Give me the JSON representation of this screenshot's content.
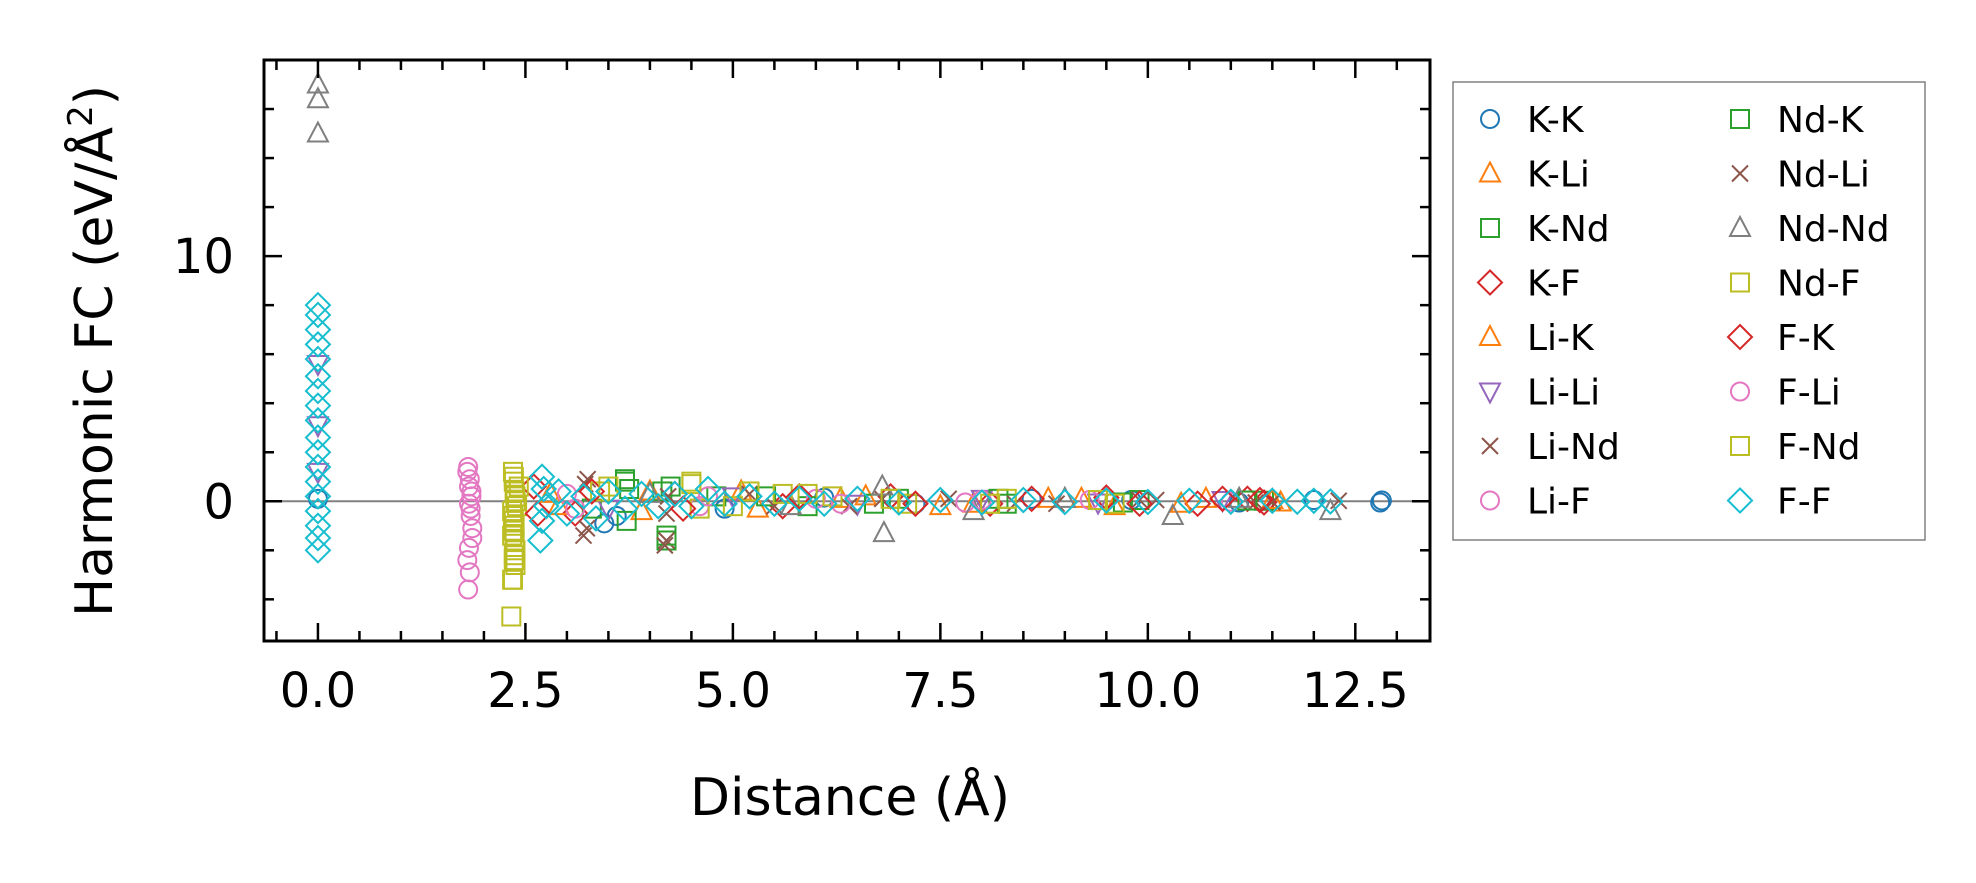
{
  "chart_data": {
    "type": "scatter",
    "title": "",
    "xlabel": "Distance (Å)",
    "ylabel_main": "Harmonic FC (eV/Å",
    "ylabel_sup": "2",
    "ylabel_end": ")",
    "xlim": [
      -0.65,
      13.4
    ],
    "ylim": [
      -5.7,
      18.0
    ],
    "x_ticks": [
      0.0,
      2.5,
      5.0,
      7.5,
      10.0,
      12.5
    ],
    "x_tick_labels": [
      "0.0",
      "2.5",
      "5.0",
      "7.5",
      "10.0",
      "12.5"
    ],
    "y_ticks": [
      0,
      10
    ],
    "y_tick_labels": [
      "0",
      "10"
    ],
    "zero_line": true,
    "legend_position": "right",
    "legend_columns": 2,
    "series": [
      {
        "name": "K-K",
        "marker": "circle",
        "color": "#1f77b4",
        "points": [
          [
            0.0,
            0.1
          ],
          [
            3.45,
            -0.9
          ],
          [
            3.6,
            -0.6
          ],
          [
            4.9,
            -0.3
          ],
          [
            6.1,
            0.15
          ],
          [
            7.2,
            -0.1
          ],
          [
            8.6,
            0.1
          ],
          [
            9.8,
            0.05
          ],
          [
            11.1,
            -0.05
          ],
          [
            12.0,
            0.05
          ],
          [
            12.8,
            -0.05
          ],
          [
            12.82,
            0.03
          ]
        ]
      },
      {
        "name": "K-Li",
        "marker": "triangle-up",
        "color": "#ff7f0e",
        "points": [
          [
            2.8,
            0.3
          ],
          [
            3.9,
            -0.4
          ],
          [
            5.1,
            0.4
          ],
          [
            6.3,
            0.1
          ],
          [
            7.5,
            -0.2
          ],
          [
            8.8,
            0.1
          ],
          [
            9.6,
            -0.2
          ],
          [
            10.7,
            0.1
          ],
          [
            11.6,
            -0.05
          ]
        ]
      },
      {
        "name": "K-Nd",
        "marker": "square",
        "color": "#2ca02c",
        "points": [
          [
            3.3,
            -0.3
          ],
          [
            3.7,
            0.8
          ],
          [
            3.75,
            0.5
          ],
          [
            4.2,
            -1.6
          ],
          [
            4.25,
            0.6
          ],
          [
            4.8,
            0.2
          ],
          [
            5.9,
            -0.2
          ],
          [
            7.0,
            0.1
          ],
          [
            8.3,
            -0.1
          ],
          [
            9.9,
            0.05
          ],
          [
            11.4,
            0.02
          ]
        ]
      },
      {
        "name": "K-F",
        "marker": "diamond",
        "color": "#d62728",
        "points": [
          [
            2.6,
            0.6
          ],
          [
            3.1,
            -0.5
          ],
          [
            4.3,
            0.3
          ],
          [
            5.6,
            -0.2
          ],
          [
            6.9,
            0.2
          ],
          [
            8.1,
            -0.1
          ],
          [
            9.5,
            0.15
          ],
          [
            10.6,
            -0.1
          ],
          [
            11.2,
            0.1
          ],
          [
            11.4,
            -0.05
          ]
        ]
      },
      {
        "name": "Li-K",
        "marker": "triangle-up",
        "color": "#ff7f0e",
        "points": [
          [
            2.9,
            -0.2
          ],
          [
            4.0,
            0.4
          ],
          [
            5.3,
            -0.3
          ],
          [
            6.6,
            0.2
          ],
          [
            7.9,
            -0.1
          ],
          [
            9.2,
            0.1
          ],
          [
            10.4,
            -0.1
          ],
          [
            11.5,
            0.05
          ]
        ]
      },
      {
        "name": "Li-Li",
        "marker": "triangle-down",
        "color": "#9467bd",
        "points": [
          [
            0.0,
            5.6
          ],
          [
            0.0,
            3.1
          ],
          [
            0.0,
            1.2
          ],
          [
            3.5,
            -0.3
          ],
          [
            5.0,
            0.2
          ],
          [
            6.5,
            -0.1
          ],
          [
            8.0,
            0.1
          ],
          [
            9.4,
            -0.05
          ],
          [
            10.9,
            0.05
          ]
        ]
      },
      {
        "name": "Li-Nd",
        "marker": "x",
        "color": "#8c564b",
        "points": [
          [
            3.25,
            0.9
          ],
          [
            3.2,
            -1.4
          ],
          [
            4.2,
            -1.6
          ],
          [
            4.2,
            -0.5
          ],
          [
            5.2,
            0.3
          ],
          [
            6.4,
            -0.2
          ],
          [
            7.6,
            0.1
          ],
          [
            8.9,
            -0.1
          ],
          [
            10.1,
            0.05
          ],
          [
            11.3,
            -0.05
          ],
          [
            12.3,
            0.02
          ]
        ]
      },
      {
        "name": "Li-F",
        "marker": "circle",
        "color": "#e377c2",
        "points": [
          [
            1.8,
            1.2
          ],
          [
            1.82,
            0.6
          ],
          [
            1.84,
            -0.3
          ],
          [
            1.86,
            -1.1
          ],
          [
            1.8,
            -2.4
          ],
          [
            1.83,
            -2.9
          ],
          [
            1.85,
            0.2
          ],
          [
            3.0,
            0.3
          ],
          [
            4.6,
            -0.2
          ],
          [
            6.0,
            0.1
          ],
          [
            7.8,
            -0.05
          ],
          [
            9.3,
            0.05
          ],
          [
            11.0,
            -0.02
          ]
        ]
      },
      {
        "name": "Nd-K",
        "marker": "square",
        "color": "#2ca02c",
        "points": [
          [
            3.7,
            0.9
          ],
          [
            3.72,
            -0.8
          ],
          [
            4.15,
            0.4
          ],
          [
            4.2,
            -1.4
          ],
          [
            5.4,
            0.2
          ],
          [
            6.7,
            -0.1
          ],
          [
            8.2,
            0.1
          ],
          [
            9.7,
            -0.05
          ],
          [
            11.2,
            0.03
          ]
        ]
      },
      {
        "name": "Nd-Li",
        "marker": "x",
        "color": "#8c564b",
        "points": [
          [
            3.22,
            0.7
          ],
          [
            3.24,
            -1.1
          ],
          [
            4.18,
            -1.8
          ],
          [
            4.22,
            0.2
          ],
          [
            5.5,
            -0.2
          ],
          [
            6.8,
            0.1
          ],
          [
            8.4,
            -0.1
          ],
          [
            9.9,
            0.05
          ],
          [
            11.5,
            -0.03
          ]
        ]
      },
      {
        "name": "Nd-Nd",
        "marker": "triangle-up",
        "color": "#7f7f7f",
        "points": [
          [
            0.0,
            17.0
          ],
          [
            0.0,
            16.4
          ],
          [
            0.0,
            15.0
          ],
          [
            4.0,
            0.3
          ],
          [
            5.7,
            -0.2
          ],
          [
            6.8,
            0.6
          ],
          [
            6.82,
            -1.3
          ],
          [
            7.9,
            -0.4
          ],
          [
            9.0,
            0.1
          ],
          [
            10.3,
            -0.6
          ],
          [
            11.1,
            0.1
          ],
          [
            12.2,
            -0.4
          ]
        ]
      },
      {
        "name": "Nd-F",
        "marker": "square",
        "color": "#bcbd22",
        "points": [
          [
            2.35,
            1.2
          ],
          [
            2.36,
            0.8
          ],
          [
            2.37,
            0.4
          ],
          [
            2.38,
            0.0
          ],
          [
            2.34,
            -0.4
          ],
          [
            2.36,
            -0.8
          ],
          [
            2.35,
            -1.2
          ],
          [
            2.37,
            -1.6
          ],
          [
            2.38,
            -2.0
          ],
          [
            2.36,
            -2.4
          ],
          [
            2.34,
            -3.2
          ],
          [
            2.33,
            -4.7
          ],
          [
            2.4,
            -0.2
          ],
          [
            2.42,
            0.6
          ],
          [
            3.4,
            0.4
          ],
          [
            4.5,
            0.7
          ],
          [
            4.6,
            -0.3
          ],
          [
            5.2,
            0.4
          ],
          [
            5.6,
            0.3
          ],
          [
            6.2,
            0.2
          ],
          [
            7.1,
            -0.1
          ],
          [
            8.3,
            0.1
          ],
          [
            9.6,
            -0.1
          ]
        ]
      },
      {
        "name": "F-K",
        "marker": "diamond",
        "color": "#d62728",
        "points": [
          [
            2.65,
            -0.5
          ],
          [
            3.3,
            0.4
          ],
          [
            4.4,
            -0.3
          ],
          [
            5.8,
            0.2
          ],
          [
            7.2,
            -0.1
          ],
          [
            8.6,
            0.1
          ],
          [
            9.9,
            -0.1
          ],
          [
            10.9,
            0.1
          ],
          [
            11.35,
            0.05
          ]
        ]
      },
      {
        "name": "F-Li",
        "marker": "circle",
        "color": "#e377c2",
        "points": [
          [
            1.81,
            1.4
          ],
          [
            1.83,
            0.9
          ],
          [
            1.85,
            0.4
          ],
          [
            1.82,
            -0.1
          ],
          [
            1.84,
            -0.6
          ],
          [
            1.86,
            -1.5
          ],
          [
            1.82,
            -1.9
          ],
          [
            1.81,
            -3.6
          ],
          [
            3.1,
            -0.3
          ],
          [
            4.7,
            0.2
          ],
          [
            6.3,
            -0.1
          ],
          [
            8.0,
            0.05
          ]
        ]
      },
      {
        "name": "F-Nd",
        "marker": "square",
        "color": "#bcbd22",
        "points": [
          [
            2.36,
            1.0
          ],
          [
            2.38,
            0.2
          ],
          [
            2.35,
            -0.6
          ],
          [
            2.37,
            -1.0
          ],
          [
            2.34,
            -1.4
          ],
          [
            2.36,
            -2.2
          ],
          [
            2.38,
            -2.6
          ],
          [
            2.35,
            -3.2
          ],
          [
            3.5,
            0.6
          ],
          [
            4.5,
            0.8
          ],
          [
            5.0,
            -0.2
          ],
          [
            5.9,
            0.3
          ],
          [
            6.9,
            0.1
          ],
          [
            8.1,
            -0.1
          ],
          [
            9.4,
            0.05
          ]
        ]
      },
      {
        "name": "F-F",
        "marker": "diamond",
        "color": "#17becf",
        "points": [
          [
            0.0,
            8.0
          ],
          [
            0.0,
            7.6
          ],
          [
            0.0,
            7.0
          ],
          [
            0.0,
            6.4
          ],
          [
            0.0,
            5.8
          ],
          [
            0.0,
            5.1
          ],
          [
            0.0,
            4.5
          ],
          [
            0.0,
            3.9
          ],
          [
            0.0,
            3.3
          ],
          [
            0.0,
            2.6
          ],
          [
            0.0,
            2.0
          ],
          [
            0.0,
            1.4
          ],
          [
            0.0,
            0.8
          ],
          [
            0.0,
            0.2
          ],
          [
            0.0,
            -0.4
          ],
          [
            0.0,
            -1.0
          ],
          [
            0.0,
            -1.5
          ],
          [
            0.0,
            -2.0
          ],
          [
            2.7,
            1.0
          ],
          [
            2.72,
            0.5
          ],
          [
            2.75,
            -0.2
          ],
          [
            2.7,
            -0.8
          ],
          [
            2.68,
            -1.6
          ],
          [
            2.9,
            0.4
          ],
          [
            3.0,
            -0.5
          ],
          [
            3.2,
            0.2
          ],
          [
            3.35,
            -0.7
          ],
          [
            3.5,
            0.4
          ],
          [
            3.7,
            -0.3
          ],
          [
            3.9,
            0.3
          ],
          [
            4.1,
            -0.2
          ],
          [
            4.3,
            0.3
          ],
          [
            4.5,
            -0.2
          ],
          [
            4.7,
            0.5
          ],
          [
            4.9,
            -0.1
          ],
          [
            5.2,
            0.2
          ],
          [
            5.5,
            -0.1
          ],
          [
            5.8,
            0.1
          ],
          [
            6.1,
            -0.1
          ],
          [
            6.5,
            0.1
          ],
          [
            7.0,
            -0.05
          ],
          [
            7.5,
            0.05
          ],
          [
            8.0,
            -0.05
          ],
          [
            8.5,
            0.05
          ],
          [
            9.0,
            -0.03
          ],
          [
            9.5,
            0.03
          ],
          [
            10.0,
            -0.03
          ],
          [
            10.5,
            0.02
          ],
          [
            11.0,
            -0.02
          ],
          [
            11.5,
            0.02
          ],
          [
            11.8,
            -0.02
          ],
          [
            12.0,
            0.02
          ],
          [
            12.2,
            -0.01
          ]
        ]
      }
    ]
  }
}
